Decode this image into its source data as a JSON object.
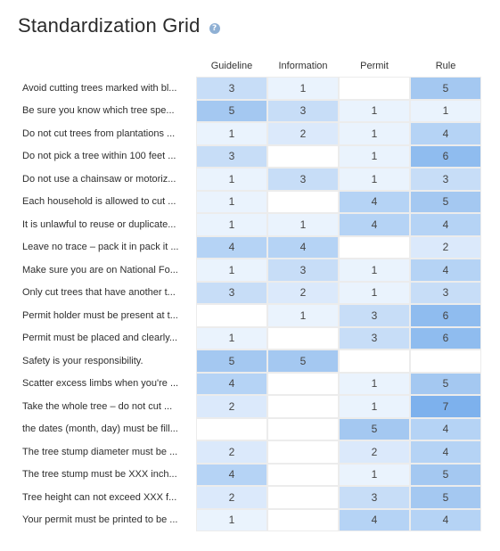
{
  "page": {
    "title": "Standardization Grid",
    "help_icon": "question-circle-icon"
  },
  "columns": [
    "Guideline",
    "Information",
    "Permit",
    "Rule"
  ],
  "colors": {
    "empty": "#ffffff",
    "v1": "#eaf3fd",
    "v2": "#dbe9fb",
    "v3": "#c7ddf7",
    "v4": "#b5d3f5",
    "v5": "#a4c8f1",
    "v6": "#8fbcef",
    "v7": "#7db1ed"
  },
  "rows": [
    {
      "label": "Avoid cutting trees marked with bl...",
      "values": [
        "3",
        "1",
        "",
        "5"
      ]
    },
    {
      "label": "Be sure you know which tree spe...",
      "values": [
        "5",
        "3",
        "1",
        "1"
      ]
    },
    {
      "label": "Do not cut trees from plantations ...",
      "values": [
        "1",
        "2",
        "1",
        "4"
      ]
    },
    {
      "label": "Do not pick a tree within 100 feet ...",
      "values": [
        "3",
        "",
        "1",
        "6"
      ]
    },
    {
      "label": "Do not use a chainsaw or motoriz...",
      "values": [
        "1",
        "3",
        "1",
        "3"
      ]
    },
    {
      "label": "Each household is allowed to cut ...",
      "values": [
        "1",
        "",
        "4",
        "5"
      ]
    },
    {
      "label": "It is unlawful to reuse or duplicate...",
      "values": [
        "1",
        "1",
        "4",
        "4"
      ]
    },
    {
      "label": "Leave no trace – pack it in pack it ...",
      "values": [
        "4",
        "4",
        "",
        "2"
      ]
    },
    {
      "label": "Make sure you are on National Fo...",
      "values": [
        "1",
        "3",
        "1",
        "4"
      ]
    },
    {
      "label": "Only cut trees that have another t...",
      "values": [
        "3",
        "2",
        "1",
        "3"
      ]
    },
    {
      "label": "Permit holder must be present at t...",
      "values": [
        "",
        "1",
        "3",
        "6"
      ]
    },
    {
      "label": "Permit must be placed and clearly...",
      "values": [
        "1",
        "",
        "3",
        "6"
      ]
    },
    {
      "label": "Safety is your responsibility.",
      "values": [
        "5",
        "5",
        "",
        ""
      ]
    },
    {
      "label": "Scatter excess limbs when you're ...",
      "values": [
        "4",
        "",
        "1",
        "5"
      ]
    },
    {
      "label": "Take the whole tree – do not cut ...",
      "values": [
        "2",
        "",
        "1",
        "7"
      ]
    },
    {
      "label": "the dates (month, day) must be fill...",
      "values": [
        "",
        "",
        "5",
        "4"
      ]
    },
    {
      "label": "The tree stump diameter must be ...",
      "values": [
        "2",
        "",
        "2",
        "4"
      ]
    },
    {
      "label": "The tree stump must be XXX inch...",
      "values": [
        "4",
        "",
        "1",
        "5"
      ]
    },
    {
      "label": "Tree height can not exceed XXX f...",
      "values": [
        "2",
        "",
        "3",
        "5"
      ]
    },
    {
      "label": "Your permit must be printed to be ...",
      "values": [
        "1",
        "",
        "4",
        "4"
      ]
    }
  ]
}
